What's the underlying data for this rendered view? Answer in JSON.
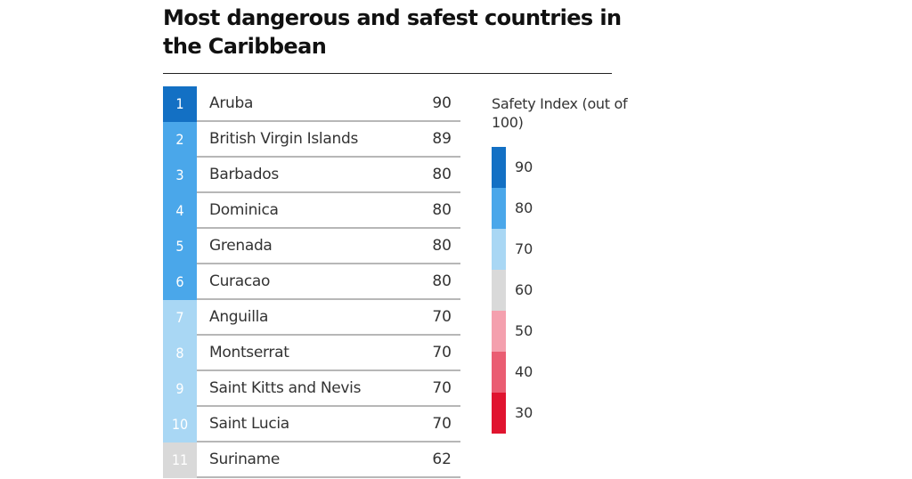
{
  "chart_data": {
    "type": "table",
    "title": "Most dangerous and safest countries in the Caribbean",
    "rows": [
      {
        "rank": "1",
        "country": "Aruba",
        "value": 90,
        "color": "#1370c4"
      },
      {
        "rank": "2",
        "country": "British Virgin Islands",
        "value": 89,
        "color": "#4aa7ea"
      },
      {
        "rank": "3",
        "country": "Barbados",
        "value": 80,
        "color": "#4aa7ea"
      },
      {
        "rank": "4",
        "country": "Dominica",
        "value": 80,
        "color": "#4aa7ea"
      },
      {
        "rank": "5",
        "country": "Grenada",
        "value": 80,
        "color": "#4aa7ea"
      },
      {
        "rank": "6",
        "country": "Curacao",
        "value": 80,
        "color": "#4aa7ea"
      },
      {
        "rank": "7",
        "country": "Anguilla",
        "value": 70,
        "color": "#a9d7f4"
      },
      {
        "rank": "8",
        "country": "Montserrat",
        "value": 70,
        "color": "#a9d7f4"
      },
      {
        "rank": "9",
        "country": "Saint Kitts and Nevis",
        "value": 70,
        "color": "#a9d7f4"
      },
      {
        "rank": "10",
        "country": "Saint Lucia",
        "value": 70,
        "color": "#a9d7f4"
      },
      {
        "rank": "11",
        "country": "Suriname",
        "value": 62,
        "color": "#d9d9d9"
      }
    ],
    "legend": {
      "title": "Safety Index (out of 100)",
      "placement": "right",
      "items": [
        {
          "label": "90",
          "color": "#1370c4"
        },
        {
          "label": "80",
          "color": "#4aa7ea"
        },
        {
          "label": "70",
          "color": "#a9d7f4"
        },
        {
          "label": "60",
          "color": "#d9d9d9"
        },
        {
          "label": "50",
          "color": "#f4a0ae"
        },
        {
          "label": "40",
          "color": "#ea5d72"
        },
        {
          "label": "30",
          "color": "#e0142f"
        }
      ]
    }
  }
}
